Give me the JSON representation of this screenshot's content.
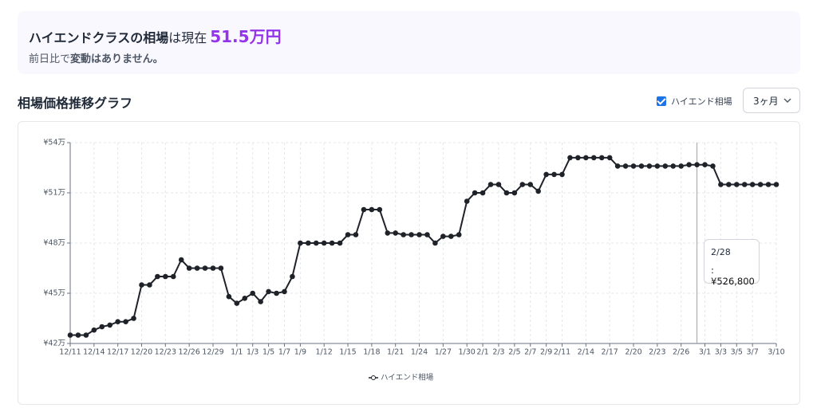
{
  "header": {
    "title_strong": "ハイエンドクラスの相場",
    "title_mid": "は現在",
    "price": "51.5万円",
    "sub_normal": "前日比で",
    "sub_strong": "変動はありません。"
  },
  "section_title": "相場価格推移グラフ",
  "controls": {
    "checkbox_label": "ハイエンド相場",
    "range": "3ヶ月"
  },
  "tooltip": {
    "title": "2/28",
    "text": ": ¥526,800"
  },
  "chart_data": {
    "type": "line",
    "categories": [
      "12/11",
      null,
      null,
      "12/14",
      null,
      null,
      "12/17",
      null,
      null,
      "12/20",
      null,
      null,
      "12/23",
      null,
      null,
      "12/26",
      null,
      null,
      "12/29",
      null,
      null,
      "1/1",
      null,
      "1/3",
      null,
      "1/5",
      null,
      "1/7",
      null,
      "1/9",
      null,
      null,
      "1/12",
      null,
      null,
      "1/15",
      null,
      null,
      "1/18",
      null,
      null,
      "1/21",
      null,
      null,
      "1/24",
      null,
      null,
      "1/27",
      null,
      null,
      "1/30",
      null,
      "2/1",
      null,
      "2/3",
      null,
      "2/5",
      null,
      "2/7",
      null,
      "2/9",
      null,
      "2/11",
      null,
      null,
      "2/14",
      null,
      null,
      "2/17",
      null,
      null,
      "2/20",
      null,
      null,
      "2/23",
      null,
      null,
      "2/26",
      null,
      null,
      "3/1",
      null,
      "3/3",
      null,
      "3/5",
      null,
      "3/7",
      null,
      null,
      "3/10"
    ],
    "series": [
      {
        "name": "ハイエンド相場",
        "color": "#1f2329",
        "values": [
          425000,
          425000,
          425000,
          428000,
          430000,
          431000,
          433000,
          433000,
          435000,
          455000,
          455000,
          460000,
          460000,
          460000,
          470000,
          465000,
          465000,
          465000,
          465000,
          465000,
          448000,
          444000,
          447000,
          450000,
          445000,
          451000,
          450000,
          451000,
          460000,
          480000,
          480000,
          480000,
          480000,
          480000,
          480000,
          485000,
          485000,
          500000,
          500000,
          500000,
          486000,
          486000,
          485000,
          485000,
          485000,
          485000,
          480000,
          484000,
          484000,
          485000,
          505000,
          510000,
          510000,
          515000,
          515000,
          510000,
          510000,
          515000,
          515000,
          511000,
          521000,
          521000,
          521000,
          531000,
          531000,
          531000,
          531000,
          531000,
          531000,
          526000,
          526000,
          526000,
          526000,
          526000,
          526000,
          526000,
          526000,
          526000,
          526800,
          526800,
          526800,
          526000,
          515000,
          515000,
          515000,
          515000,
          515000,
          515000,
          515000,
          515000
        ]
      }
    ],
    "ylim": [
      420000,
      540000
    ],
    "yticks": [
      {
        "value": 420000,
        "label": "¥42万"
      },
      {
        "value": 450000,
        "label": "¥45万"
      },
      {
        "value": 480000,
        "label": "¥48万"
      },
      {
        "value": 510000,
        "label": "¥51万"
      },
      {
        "value": 540000,
        "label": "¥54万"
      }
    ],
    "grid": true,
    "legend": "bottom"
  }
}
